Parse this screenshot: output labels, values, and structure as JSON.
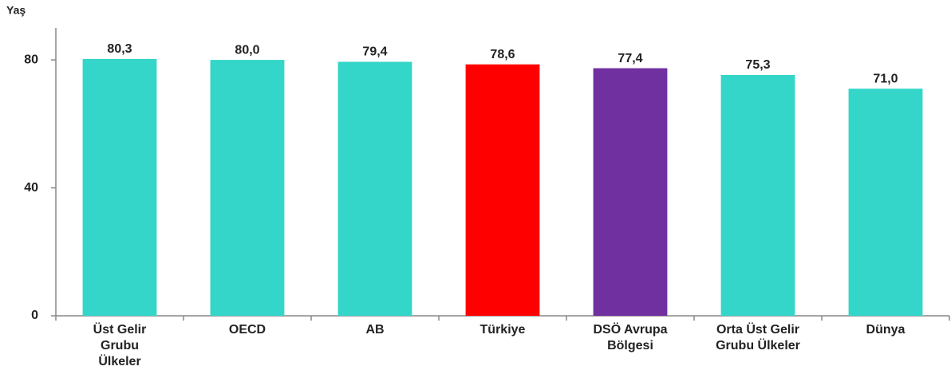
{
  "chart_data": {
    "type": "bar",
    "axis_label": "Yaş",
    "categories": [
      "Üst Gelir Grubu Ülkeler",
      "OECD",
      "AB",
      "Türkiye",
      "DSÖ Avrupa Bölgesi",
      "Orta Üst Gelir Grubu Ülkeler",
      "Dünya"
    ],
    "values": [
      80.3,
      80.0,
      79.4,
      78.6,
      77.4,
      75.3,
      71.0
    ],
    "value_labels": [
      "80,3",
      "80,0",
      "79,4",
      "78,6",
      "77,4",
      "75,3",
      "71,0"
    ],
    "colors": [
      "#33d6c8",
      "#33d6c8",
      "#33d6c8",
      "#ff0000",
      "#7030a0",
      "#33d6c8",
      "#33d6c8"
    ],
    "ylim": [
      0,
      90
    ],
    "yticks": [
      0,
      40,
      80
    ],
    "grid": false
  }
}
